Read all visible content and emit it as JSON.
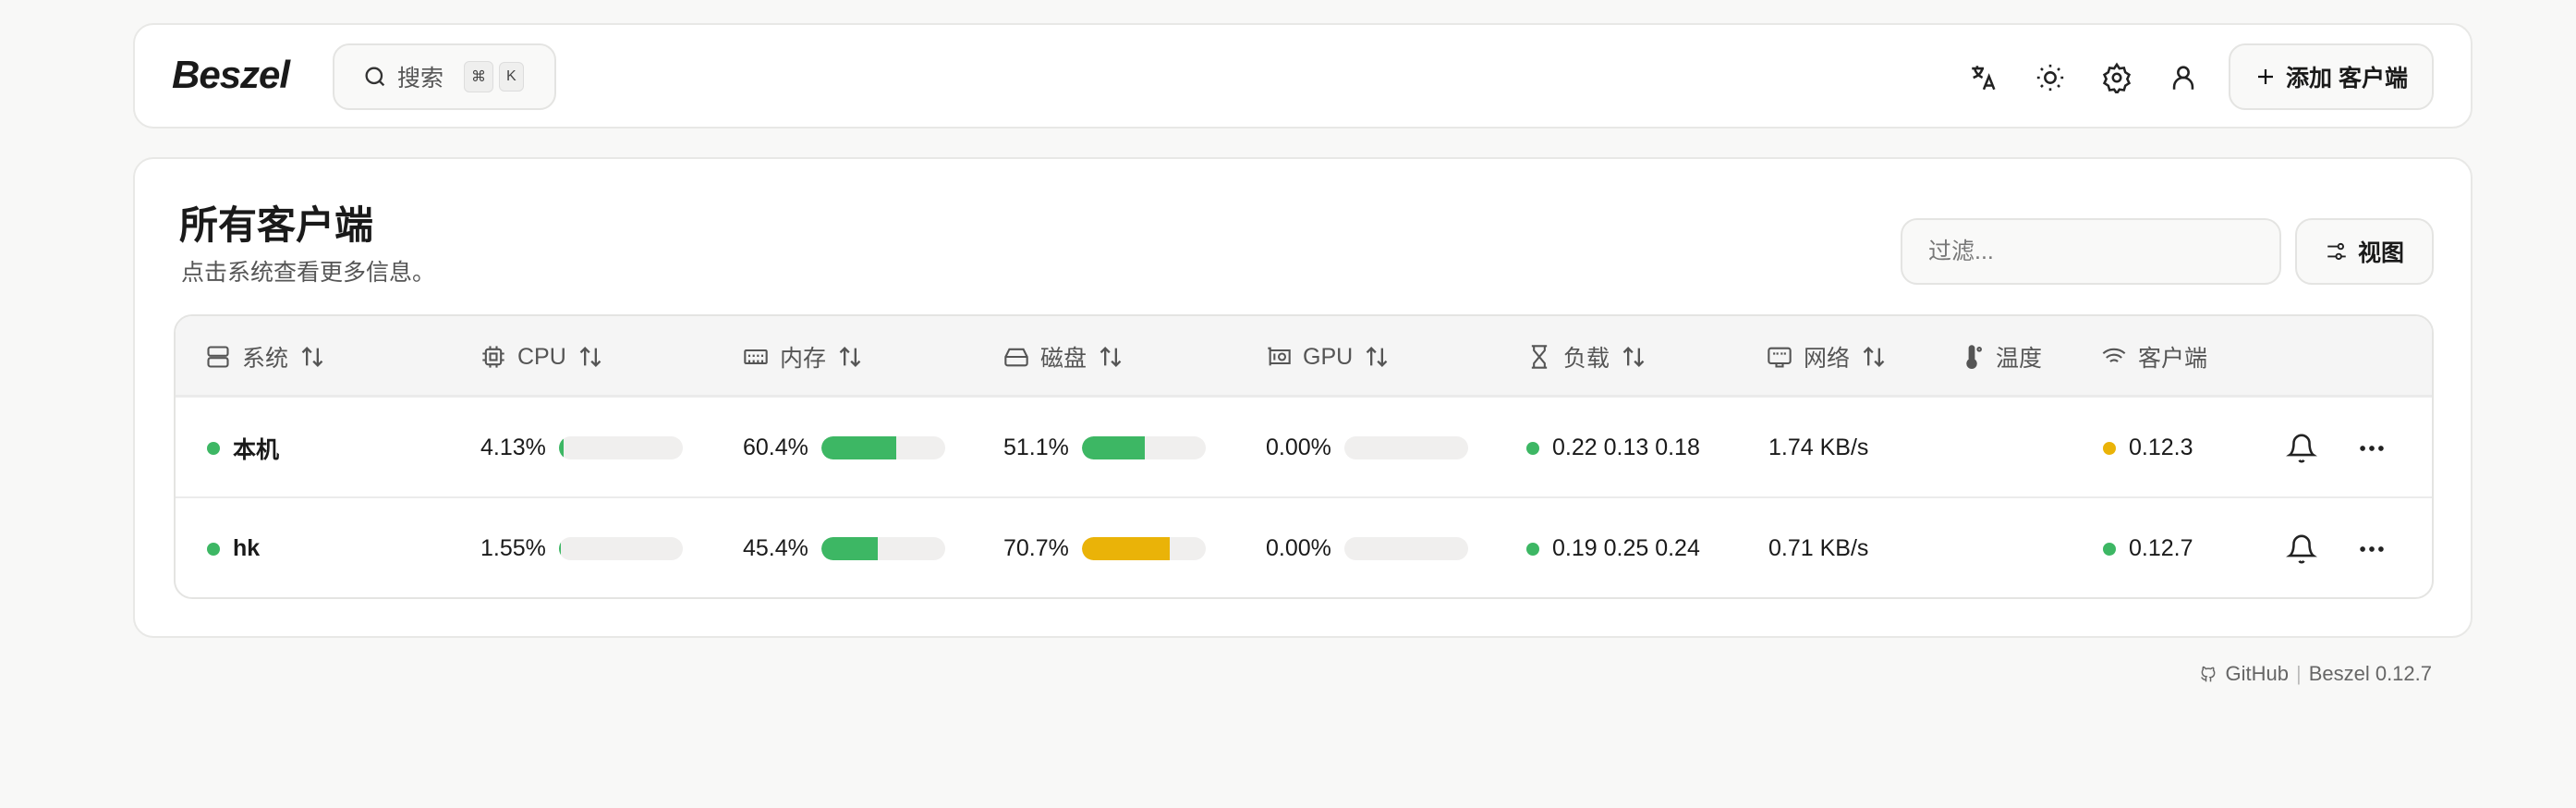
{
  "header": {
    "logo": "Beszel",
    "search_label": "搜索",
    "search_kbd": [
      "⌘",
      "K"
    ],
    "add_label": "添加 客户端",
    "icons": [
      "translate-icon",
      "sun-icon",
      "gear-icon",
      "user-icon"
    ]
  },
  "main": {
    "title": "所有客户端",
    "subtitle": "点击系统查看更多信息。",
    "filter_placeholder": "过滤...",
    "view_label": "视图"
  },
  "table": {
    "columns": [
      {
        "label": "系统",
        "icon": "server-icon"
      },
      {
        "label": "CPU",
        "icon": "cpu-icon"
      },
      {
        "label": "内存",
        "icon": "memory-icon"
      },
      {
        "label": "磁盘",
        "icon": "disk-icon"
      },
      {
        "label": "GPU",
        "icon": "gpu-icon"
      },
      {
        "label": "负载",
        "icon": "hourglass-icon"
      },
      {
        "label": "网络",
        "icon": "network-icon"
      },
      {
        "label": "温度",
        "icon": "thermometer-icon"
      },
      {
        "label": "客户端",
        "icon": "wifi-icon"
      }
    ],
    "rows": [
      {
        "name": "本机",
        "status_color": "#3db764",
        "cpu": "4.13%",
        "cpu_pct": 4.13,
        "mem": "60.4%",
        "mem_pct": 60.4,
        "disk": "51.1%",
        "disk_pct": 51.1,
        "disk_color": "#3db764",
        "gpu": "0.00%",
        "gpu_pct": 0,
        "load": "0.22 0.13 0.18",
        "net": "1.74 KB/s",
        "agent": "0.12.3",
        "agent_color": "#eab308"
      },
      {
        "name": "hk",
        "status_color": "#3db764",
        "cpu": "1.55%",
        "cpu_pct": 1.55,
        "mem": "45.4%",
        "mem_pct": 45.4,
        "disk": "70.7%",
        "disk_pct": 70.7,
        "disk_color": "#eab308",
        "gpu": "0.00%",
        "gpu_pct": 0,
        "load": "0.19 0.25 0.24",
        "net": "0.71 KB/s",
        "agent": "0.12.7",
        "agent_color": "#3db764"
      }
    ]
  },
  "footer": {
    "github": "GitHub",
    "separator": "|",
    "version": "Beszel 0.12.7"
  },
  "colors": {
    "green": "#3db764",
    "yellow": "#eab308"
  }
}
